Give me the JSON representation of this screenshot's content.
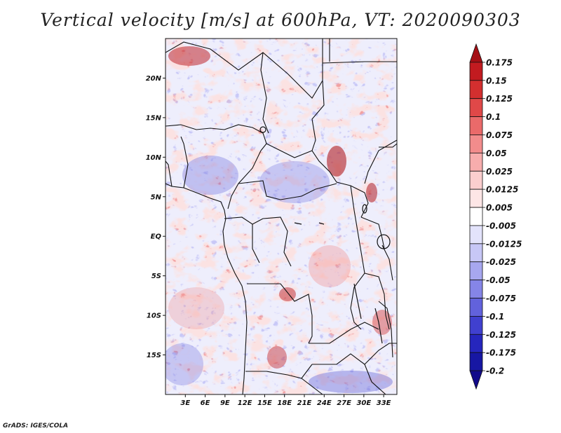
{
  "title": "Vertical velocity [m/s] at 600hPa, VT: 2020090303",
  "credit": "GrADS: IGES/COLA",
  "map": {
    "region": "Central Africa",
    "lat_range": [
      -20,
      25
    ],
    "lon_range": [
      0,
      35
    ],
    "lat_ticks": [
      "20N",
      "15N",
      "10N",
      "5N",
      "EQ",
      "5S",
      "10S",
      "15S"
    ],
    "lon_ticks": [
      "3E",
      "6E",
      "9E",
      "12E",
      "15E",
      "18E",
      "21E",
      "24E",
      "27E",
      "30E",
      "33E"
    ]
  },
  "colorbar": {
    "labels": [
      "0.175",
      "0.15",
      "0.125",
      "0.1",
      "0.075",
      "0.05",
      "0.025",
      "0.0125",
      "0.005",
      "-0.005",
      "-0.0125",
      "-0.025",
      "-0.05",
      "-0.075",
      "-0.1",
      "-0.125",
      "-0.175",
      "-0.2"
    ],
    "colors": [
      "#a50f15",
      "#c21b20",
      "#d32f2f",
      "#e04848",
      "#ea6a6a",
      "#f28c8c",
      "#f7adad",
      "#fbcece",
      "#fde6e6",
      "#ffffff",
      "#e3e3fb",
      "#c7c7f6",
      "#a7a7ef",
      "#8585e7",
      "#6262dc",
      "#4040cf",
      "#2626bd",
      "#1717a3",
      "#120a8a"
    ]
  }
}
